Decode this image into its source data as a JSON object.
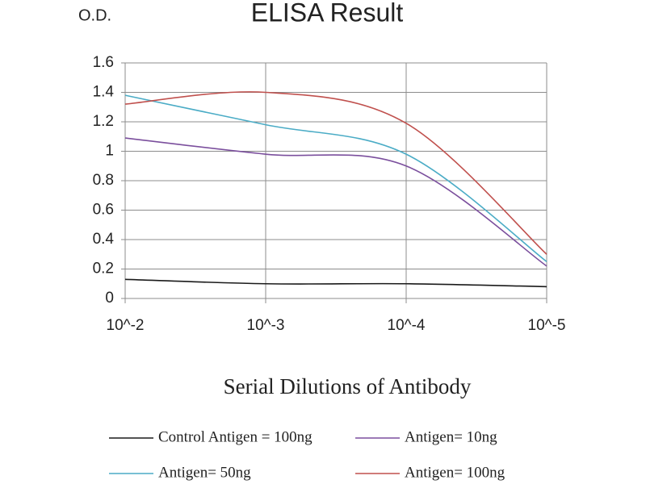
{
  "chart_data": {
    "type": "line",
    "title": "ELISA Result",
    "y_label": "O.D.",
    "x_label": "Serial Dilutions of Antibody",
    "categories": [
      "10^-2",
      "10^-3",
      "10^-4",
      "10^-5"
    ],
    "series": [
      {
        "name": "Control Antigen = 100ng",
        "color": "#1a1a1a",
        "values": [
          0.13,
          0.1,
          0.1,
          0.08
        ]
      },
      {
        "name": "Antigen= 10ng",
        "color": "#7b4f9d",
        "values": [
          1.09,
          0.98,
          0.9,
          0.22
        ]
      },
      {
        "name": "Antigen= 50ng",
        "color": "#4bacc6",
        "values": [
          1.38,
          1.18,
          0.98,
          0.25
        ]
      },
      {
        "name": "Antigen= 100ng",
        "color": "#c0504d",
        "values": [
          1.32,
          1.4,
          1.19,
          0.3
        ]
      }
    ],
    "ylim": [
      0,
      1.6
    ],
    "yticks": [
      0,
      0.2,
      0.4,
      0.6,
      0.8,
      1,
      1.2,
      1.4,
      1.6
    ],
    "grid": true,
    "smooth": true
  }
}
